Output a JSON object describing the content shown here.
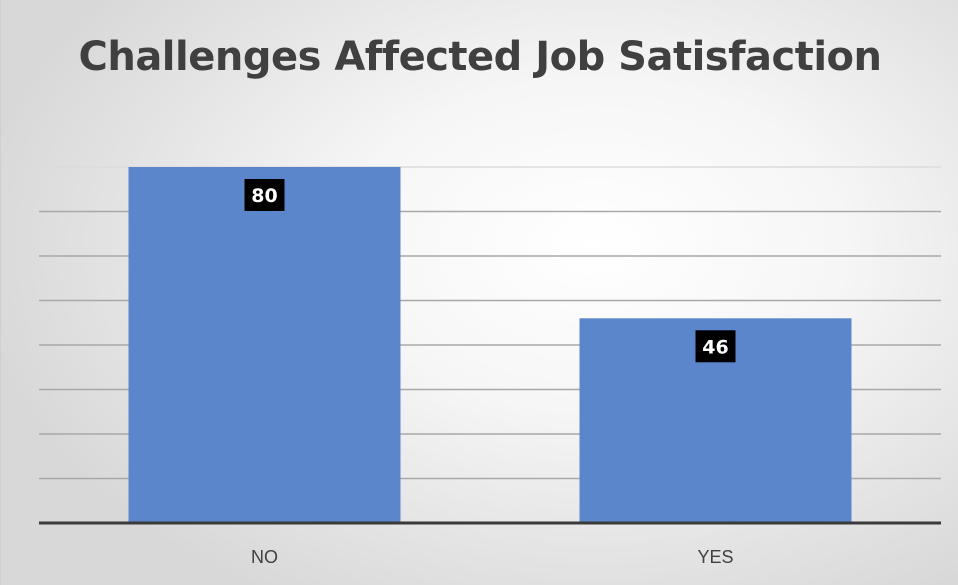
{
  "chart_data": {
    "type": "bar",
    "title": "Challenges Affected Job Satisfaction",
    "xlabel": "",
    "ylabel": "",
    "categories": [
      "NO",
      "YES"
    ],
    "values": [
      80,
      46
    ],
    "data_labels": [
      "80",
      "46"
    ],
    "ylim": [
      0,
      80
    ],
    "grid": true,
    "legend": "none",
    "colors": {
      "bar": "#5b86cc",
      "label_box": "#000000",
      "label_text": "#ffffff",
      "title": "#404040"
    }
  }
}
